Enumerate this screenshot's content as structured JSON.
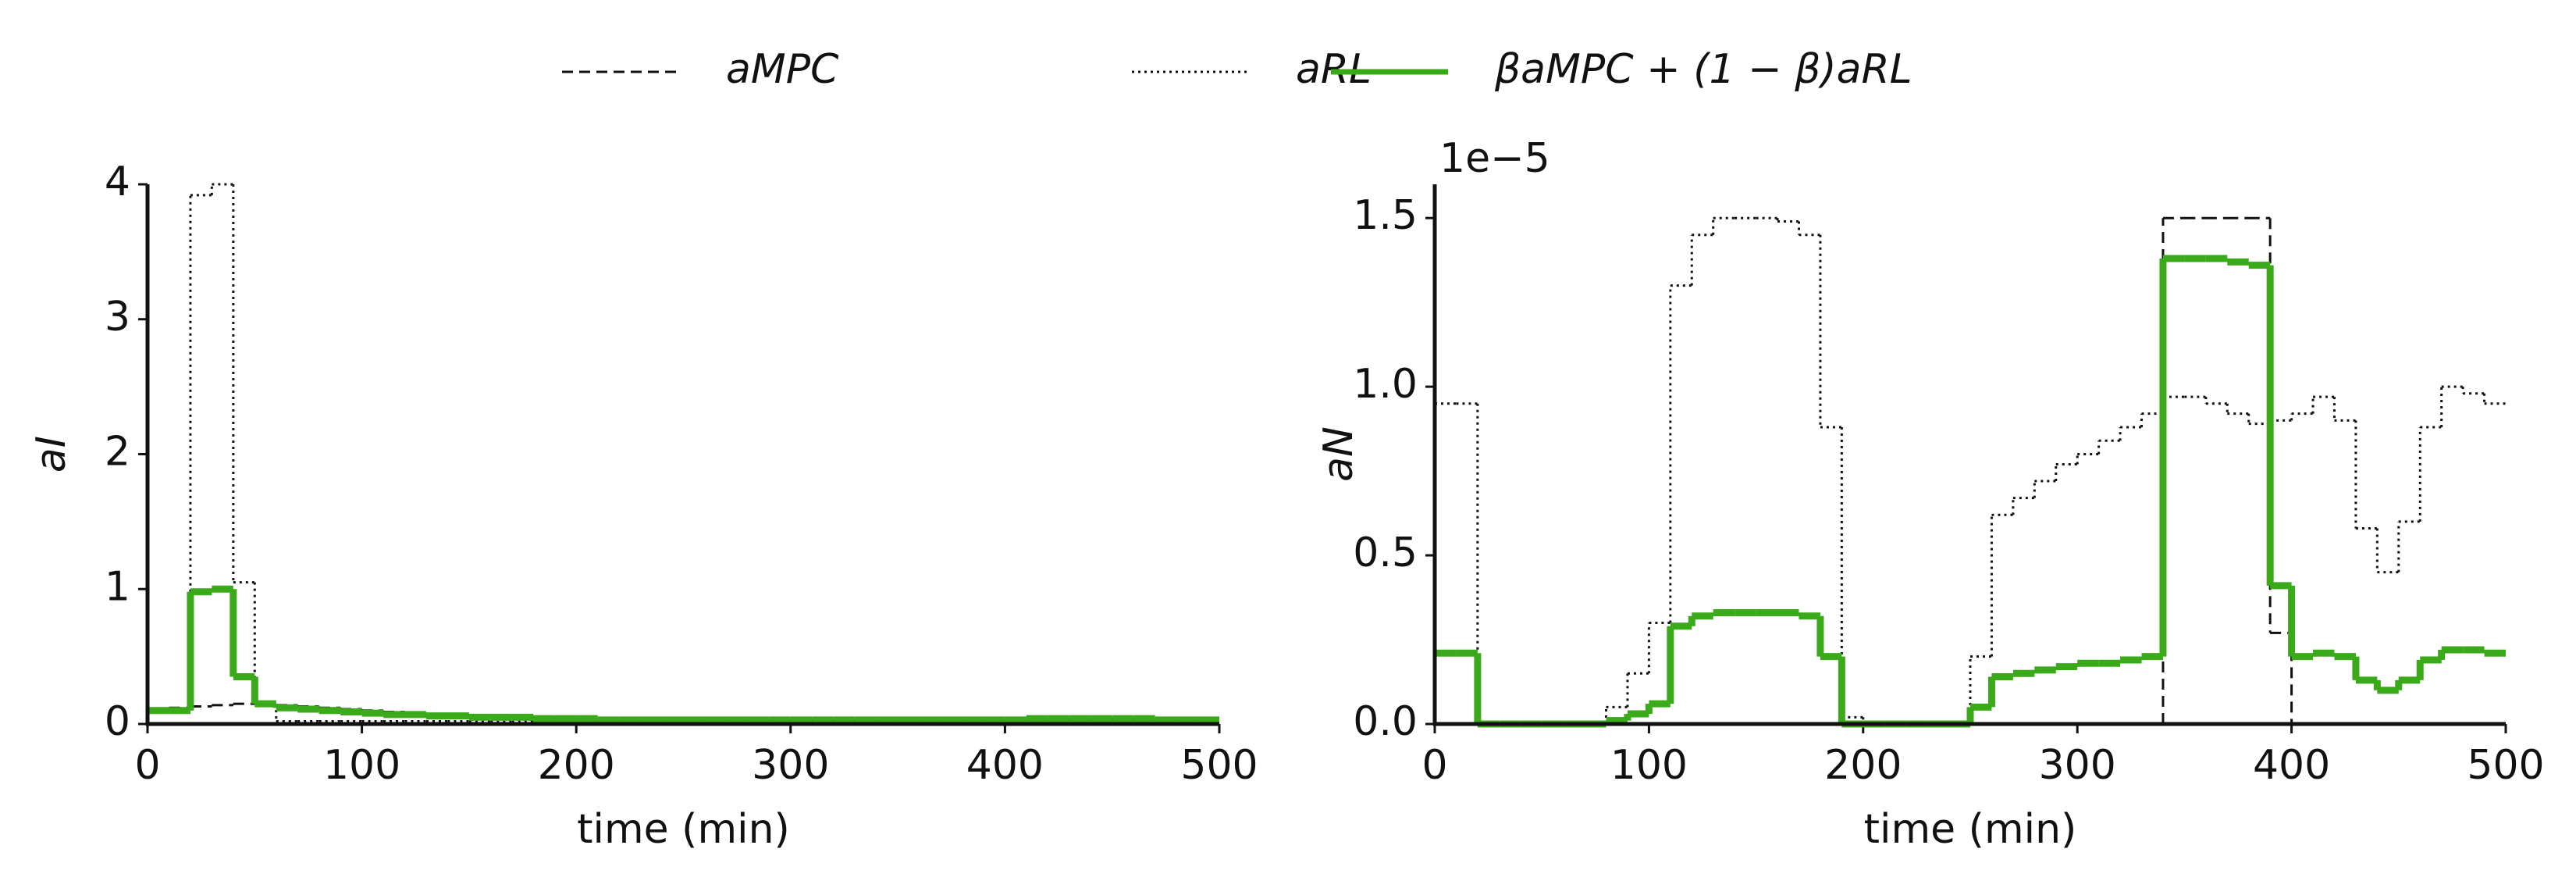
{
  "legend": {
    "entries": [
      "aMPC",
      "aRL",
      "βaMPC + (1 − β)aRL"
    ]
  },
  "chart_data": [
    {
      "type": "line",
      "ylabel": "aI",
      "xlabel": "time (min)",
      "x": [
        0,
        10,
        20,
        30,
        40,
        50,
        60,
        70,
        80,
        90,
        100,
        110,
        120,
        130,
        140,
        150,
        160,
        170,
        180,
        190,
        200,
        210,
        220,
        230,
        240,
        250,
        260,
        270,
        280,
        290,
        300,
        310,
        320,
        330,
        340,
        350,
        360,
        370,
        380,
        390,
        400,
        410,
        420,
        430,
        440,
        450,
        460,
        470,
        480,
        490
      ],
      "xlim": [
        0,
        500
      ],
      "xticks": [
        0,
        100,
        200,
        300,
        400,
        500
      ],
      "ylim": [
        0,
        4
      ],
      "yticks": [
        0,
        1,
        2,
        3,
        4
      ],
      "series": [
        {
          "color": "#111111",
          "style": "dashed",
          "values": [
            0.1,
            0.12,
            0.13,
            0.14,
            0.15,
            0.15,
            0.14,
            0.13,
            0.12,
            0.11,
            0.1,
            0.09,
            0.08,
            0.07,
            0.07,
            0.06,
            0.06,
            0.05,
            0.05,
            0.04,
            0.04,
            0.03,
            0.03,
            0.03,
            0.03,
            0.03,
            0.03,
            0.03,
            0.03,
            0.03,
            0.03,
            0.03,
            0.03,
            0.03,
            0.03,
            0.03,
            0.03,
            0.03,
            0.03,
            0.03,
            0.03,
            0.03,
            0.03,
            0.03,
            0.03,
            0.03,
            0.03,
            0.03,
            0.03,
            0.03
          ]
        },
        {
          "color": "#111111",
          "style": "dotted",
          "values": [
            0.1,
            0.1,
            3.92,
            4.0,
            1.05,
            0.15,
            0.02,
            0.02,
            0.02,
            0.02,
            0.02,
            0.02,
            0.02,
            0.02,
            0.02,
            0.02,
            0.02,
            0.02,
            0.02,
            0.02,
            0.02,
            0.02,
            0.02,
            0.02,
            0.02,
            0.02,
            0.02,
            0.02,
            0.02,
            0.02,
            0.02,
            0.02,
            0.02,
            0.02,
            0.02,
            0.02,
            0.02,
            0.02,
            0.02,
            0.02,
            0.03,
            0.04,
            0.04,
            0.04,
            0.04,
            0.04,
            0.04,
            0.03,
            0.03,
            0.03
          ]
        },
        {
          "color": "#3aaa1a",
          "style": "solid",
          "values": [
            0.1,
            0.1,
            0.98,
            1.0,
            0.35,
            0.15,
            0.12,
            0.11,
            0.1,
            0.09,
            0.08,
            0.07,
            0.07,
            0.06,
            0.06,
            0.05,
            0.05,
            0.05,
            0.04,
            0.04,
            0.04,
            0.03,
            0.03,
            0.03,
            0.03,
            0.03,
            0.03,
            0.03,
            0.03,
            0.03,
            0.03,
            0.03,
            0.03,
            0.03,
            0.03,
            0.03,
            0.03,
            0.03,
            0.03,
            0.03,
            0.03,
            0.04,
            0.04,
            0.04,
            0.04,
            0.04,
            0.04,
            0.03,
            0.03,
            0.03
          ]
        }
      ]
    },
    {
      "type": "line",
      "ylabel": "aN",
      "xlabel": "time (min)",
      "offset_label": "1e−5",
      "x": [
        0,
        10,
        20,
        30,
        40,
        50,
        60,
        70,
        80,
        90,
        100,
        110,
        120,
        130,
        140,
        150,
        160,
        170,
        180,
        190,
        200,
        210,
        220,
        230,
        240,
        250,
        260,
        270,
        280,
        290,
        300,
        310,
        320,
        330,
        340,
        350,
        360,
        370,
        380,
        390,
        400,
        410,
        420,
        430,
        440,
        450,
        460,
        470,
        480,
        490
      ],
      "xlim": [
        0,
        500
      ],
      "xticks": [
        0,
        100,
        200,
        300,
        400,
        500
      ],
      "ylim": [
        0,
        1.6
      ],
      "yticks": [
        {
          "value": 0,
          "label": "0.0"
        },
        {
          "value": 0.5,
          "label": "0.5"
        },
        {
          "value": 1,
          "label": "1.0"
        },
        {
          "value": 1.5,
          "label": "1.5"
        }
      ],
      "series": [
        {
          "color": "#111111",
          "style": "dashed",
          "values": [
            0,
            0,
            0,
            0,
            0,
            0,
            0,
            0,
            0,
            0,
            0,
            0,
            0,
            0,
            0,
            0,
            0,
            0,
            0,
            0,
            0,
            0,
            0,
            0,
            0,
            0,
            0,
            0,
            0,
            0,
            0,
            0,
            0,
            0,
            1.5,
            1.5,
            1.5,
            1.5,
            1.5,
            0.27,
            0,
            0,
            0,
            0,
            0,
            0,
            0,
            0,
            0,
            0
          ]
        },
        {
          "color": "#111111",
          "style": "dotted",
          "values": [
            0.95,
            0.95,
            0,
            0,
            0,
            0,
            0,
            0,
            0.05,
            0.15,
            0.3,
            1.3,
            1.45,
            1.5,
            1.5,
            1.5,
            1.49,
            1.45,
            0.88,
            0.02,
            0,
            0,
            0,
            0,
            0,
            0.2,
            0.62,
            0.67,
            0.72,
            0.77,
            0.8,
            0.84,
            0.88,
            0.92,
            0.97,
            0.97,
            0.95,
            0.92,
            0.89,
            0.9,
            0.92,
            0.97,
            0.9,
            0.58,
            0.45,
            0.6,
            0.88,
            1.0,
            0.98,
            0.95
          ]
        },
        {
          "color": "#3aaa1a",
          "style": "solid",
          "values": [
            0.21,
            0.21,
            0,
            0,
            0,
            0,
            0,
            0,
            0.01,
            0.03,
            0.06,
            0.29,
            0.32,
            0.33,
            0.33,
            0.33,
            0.33,
            0.32,
            0.2,
            0,
            0,
            0,
            0,
            0,
            0,
            0.05,
            0.14,
            0.15,
            0.16,
            0.17,
            0.18,
            0.18,
            0.19,
            0.2,
            1.38,
            1.38,
            1.38,
            1.37,
            1.36,
            0.41,
            0.2,
            0.21,
            0.2,
            0.13,
            0.1,
            0.13,
            0.19,
            0.22,
            0.22,
            0.21
          ]
        }
      ]
    }
  ]
}
